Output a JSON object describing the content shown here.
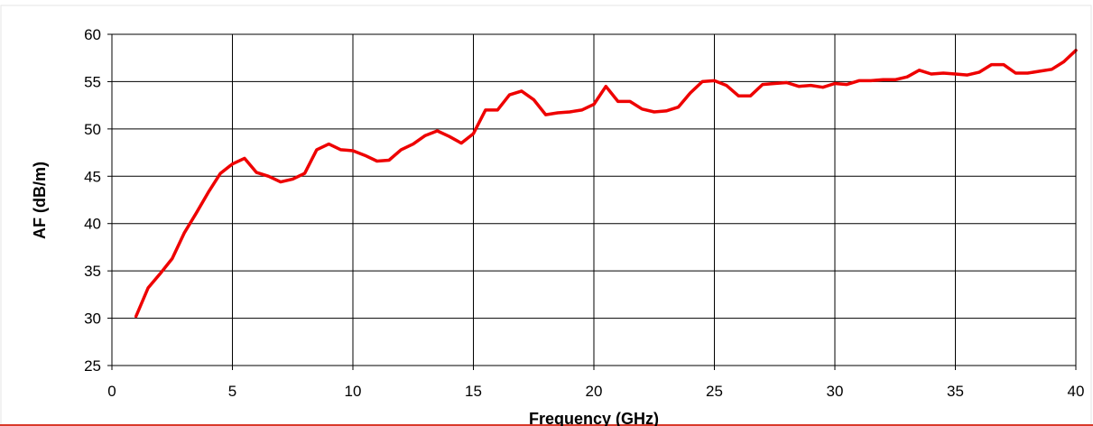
{
  "chart_data": {
    "type": "line",
    "title": "",
    "xlabel": "Frequency (GHz)",
    "ylabel": "AF (dB/m)",
    "xlim": [
      0,
      40
    ],
    "ylim": [
      25,
      60
    ],
    "xticks": [
      0,
      5,
      10,
      15,
      20,
      25,
      30,
      35,
      40
    ],
    "yticks": [
      25,
      30,
      35,
      40,
      45,
      50,
      55,
      60
    ],
    "grid": true,
    "legend": "none",
    "series": [
      {
        "color": "#ee0000",
        "x": [
          1,
          1.5,
          2,
          2.5,
          3,
          3.5,
          4,
          4.5,
          5,
          5.5,
          6,
          6.5,
          7,
          7.5,
          8,
          8.5,
          9,
          9.5,
          10,
          10.5,
          11,
          11.5,
          12,
          12.5,
          13,
          13.5,
          14,
          14.5,
          15,
          15.5,
          16,
          16.5,
          17,
          17.5,
          18,
          18.5,
          19,
          19.5,
          20,
          20.5,
          21,
          21.5,
          22,
          22.5,
          23,
          23.5,
          24,
          24.5,
          25,
          25.5,
          26,
          26.5,
          27,
          27.5,
          28,
          28.5,
          29,
          29.5,
          30,
          30.5,
          31,
          31.5,
          32,
          32.5,
          33,
          33.5,
          34,
          34.5,
          35,
          35.5,
          36,
          36.5,
          37,
          37.5,
          38,
          38.5,
          39,
          39.5,
          40
        ],
        "y": [
          30.2,
          33.2,
          34.7,
          36.3,
          39.0,
          41.1,
          43.3,
          45.3,
          46.3,
          46.9,
          45.4,
          45.0,
          44.4,
          44.7,
          45.3,
          47.8,
          48.4,
          47.8,
          47.7,
          47.2,
          46.6,
          46.7,
          47.8,
          48.4,
          49.3,
          49.8,
          49.2,
          48.5,
          49.5,
          52.0,
          52.0,
          53.6,
          54.0,
          53.1,
          51.5,
          51.7,
          51.8,
          52.0,
          52.6,
          54.5,
          52.9,
          52.9,
          52.1,
          51.8,
          51.9,
          52.3,
          53.8,
          55.0,
          55.1,
          54.6,
          53.5,
          53.5,
          54.7,
          54.8,
          54.9,
          54.5,
          54.6,
          54.4,
          54.8,
          54.7,
          55.1,
          55.1,
          55.2,
          55.2,
          55.5,
          56.2,
          55.8,
          55.9,
          55.8,
          55.7,
          56.0,
          56.8,
          56.8,
          55.9,
          55.9,
          56.1,
          56.3,
          57.1,
          58.3
        ]
      }
    ]
  }
}
